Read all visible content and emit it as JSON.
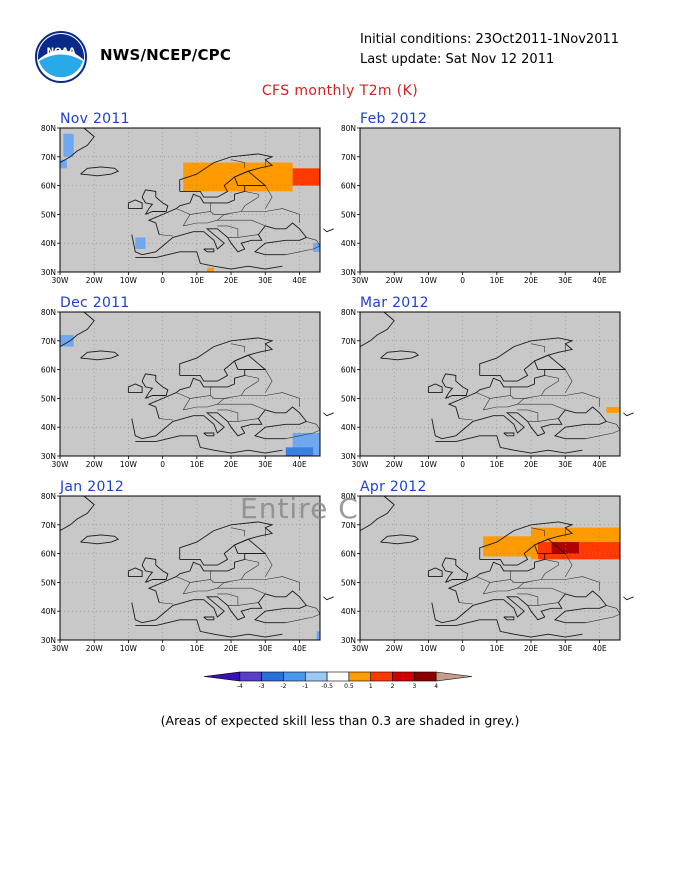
{
  "header": {
    "org": "NWS/NCEP/CPC",
    "initial_conditions": "Initial conditions: 23Oct2011-1Nov2011",
    "last_update": "Last update: Sat Nov 12 2011",
    "title": "CFS monthly T2m (K)",
    "logo_text": "NOAA"
  },
  "watermark": "Entire C",
  "panels": [
    {
      "label": "Nov 2011",
      "fill": "map",
      "anomalies": [
        {
          "lon": [
            -29,
            -26
          ],
          "lat": [
            70,
            78
          ],
          "color": "#6fa8f0"
        },
        {
          "lon": [
            -30,
            -28
          ],
          "lat": [
            66,
            69
          ],
          "color": "#6fa8f0"
        },
        {
          "lon": [
            6,
            38
          ],
          "lat": [
            58,
            68
          ],
          "color": "#ff9a00"
        },
        {
          "lon": [
            38,
            46
          ],
          "lat": [
            60,
            66
          ],
          "color": "#ff3a00"
        },
        {
          "lon": [
            -8,
            -5
          ],
          "lat": [
            38,
            42
          ],
          "color": "#6fa8f0"
        },
        {
          "lon": [
            13,
            15
          ],
          "lat": [
            30,
            31.5
          ],
          "color": "#ff9a00"
        },
        {
          "lon": [
            44,
            46
          ],
          "lat": [
            37,
            40
          ],
          "color": "#6fa8f0"
        }
      ]
    },
    {
      "label": "Feb 2012",
      "fill": "grey",
      "anomalies": []
    },
    {
      "label": "Dec 2011",
      "fill": "map",
      "anomalies": [
        {
          "lon": [
            -30,
            -26
          ],
          "lat": [
            68,
            72
          ],
          "color": "#6fa8f0"
        },
        {
          "lon": [
            38,
            46
          ],
          "lat": [
            30,
            38
          ],
          "color": "#6fa8f0"
        },
        {
          "lon": [
            36,
            44
          ],
          "lat": [
            30,
            33
          ],
          "color": "#3a7fe0"
        }
      ]
    },
    {
      "label": "Mar 2012",
      "fill": "map",
      "anomalies": [
        {
          "lon": [
            42,
            46
          ],
          "lat": [
            45,
            47
          ],
          "color": "#ff9a00"
        }
      ]
    },
    {
      "label": "Jan 2012",
      "fill": "map",
      "anomalies": [
        {
          "lon": [
            45,
            46
          ],
          "lat": [
            30,
            33
          ],
          "color": "#6fa8f0"
        }
      ]
    },
    {
      "label": "Apr 2012",
      "fill": "map",
      "anomalies": [
        {
          "lon": [
            6,
            20
          ],
          "lat": [
            59,
            66
          ],
          "color": "#ff9a00"
        },
        {
          "lon": [
            20,
            46
          ],
          "lat": [
            58,
            69
          ],
          "color": "#ff9a00"
        },
        {
          "lon": [
            22,
            46
          ],
          "lat": [
            58,
            64
          ],
          "color": "#ff3a00"
        },
        {
          "lon": [
            26,
            34
          ],
          "lat": [
            60,
            64
          ],
          "color": "#b00000"
        }
      ]
    }
  ],
  "axes": {
    "lat_labels": [
      "80N",
      "70N",
      "60N",
      "50N",
      "40N",
      "30N"
    ],
    "lat_values": [
      80,
      70,
      60,
      50,
      40,
      30
    ],
    "lon_labels": [
      "30W",
      "20W",
      "10W",
      "0",
      "10E",
      "20E",
      "30E",
      "40E"
    ],
    "lon_values": [
      -30,
      -20,
      -10,
      0,
      10,
      20,
      30,
      40
    ],
    "lon_range": [
      -30,
      46
    ],
    "lat_range": [
      30,
      80
    ]
  },
  "colorbar": {
    "labels": [
      "-4",
      "-3",
      "-2",
      "-1",
      "-0.5",
      "0.5",
      "1",
      "2",
      "3",
      "4"
    ],
    "colors": [
      "#3b0fb5",
      "#5a3ec8",
      "#2c6fd8",
      "#4c97ee",
      "#9cc8f6",
      "#ffffff",
      "#ff9c00",
      "#ff3a00",
      "#d00000",
      "#8b0000",
      "#c79c8c"
    ]
  },
  "footnote": "(Areas of expected skill less than 0.3 are shaded in grey.)"
}
